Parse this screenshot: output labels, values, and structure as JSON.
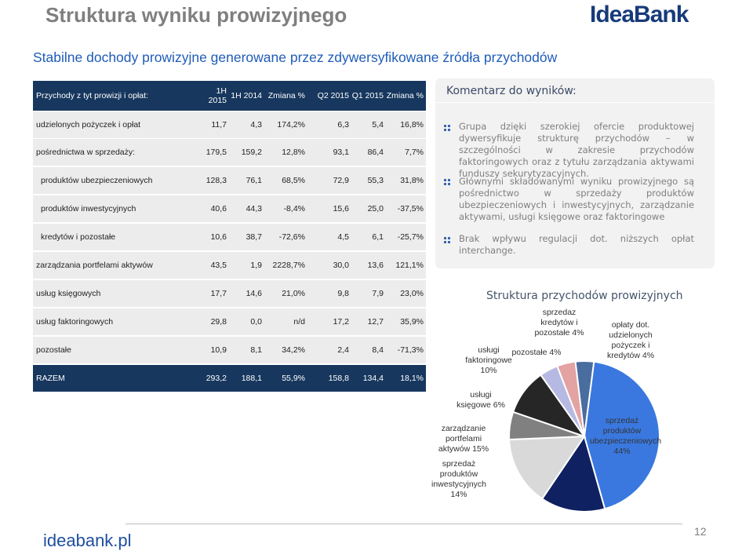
{
  "header": {
    "title": "Struktura wyniku prowizyjnego",
    "logo": "IdeaBank",
    "subtitle": "Stabilne dochody prowizyjne generowane przez zdywersyfikowane źródła przychodów"
  },
  "table": {
    "columns": [
      "Przychody z tyt prowizji i opłat:",
      "1H 2015",
      "1H 2014",
      "Zmiana %",
      "Q2 2015",
      "Q1 2015",
      "Zmiana %"
    ],
    "rows": [
      [
        "udzielonych pożyczek i opłat",
        "11,7",
        "4,3",
        "174,2%",
        "6,3",
        "5,4",
        "16,8%"
      ],
      [
        "pośrednictwa w sprzedaży:",
        "179,5",
        "159,2",
        "12,8%",
        "93,1",
        "86,4",
        "7,7%"
      ],
      [
        "produktów ubezpieczeniowych",
        "128,3",
        "76,1",
        "68,5%",
        "72,9",
        "55,3",
        "31,8%"
      ],
      [
        "produktów inwestycyjnych",
        "40,6",
        "44,3",
        "-8,4%",
        "15,6",
        "25,0",
        "-37,5%"
      ],
      [
        "kredytów i pozostałe",
        "10,6",
        "38,7",
        "-72,6%",
        "4,5",
        "6,1",
        "-25,7%"
      ],
      [
        "zarządzania portfelami aktywów",
        "43,5",
        "1,9",
        "2228,7%",
        "30,0",
        "13,6",
        "121,1%"
      ],
      [
        "usług księgowych",
        "17,7",
        "14,6",
        "21,0%",
        "9,8",
        "7,9",
        "23,0%"
      ],
      [
        "usług faktoringowych",
        "29,8",
        "0,0",
        "n/d",
        "17,2",
        "12,7",
        "35,9%"
      ],
      [
        "pozostałe",
        "10,9",
        "8,1",
        "34,2%",
        "2,4",
        "8,4",
        "-71,3%"
      ],
      [
        "RAZEM",
        "293,2",
        "188,1",
        "55,9%",
        "158,8",
        "134,4",
        "18,1%"
      ]
    ]
  },
  "comment": {
    "title": "Komentarz do wyników:",
    "bullets": [
      "Grupa dzięki szerokiej ofercie produktowej dywersyfikuje strukturę przychodów – w szczególności w zakresie przychodów faktoringowych oraz z tytułu zarządzania aktywami funduszy sekurytyzacyjnych.",
      "Głównymi składowanymi wyniku prowizyjnego są pośrednictwo w sprzedaży produktów ubezpieczeniowych i inwestycyjnych, zarządzanie aktywami, usługi księgowe oraz faktoringowe",
      "Brak wpływu regulacji dot. niższych opłat interchange."
    ]
  },
  "chart_data": {
    "type": "pie",
    "title": "Struktura przychodów prowizyjnych",
    "categories": [
      "opłaty dot. udzielonych pożyczek i kredytów 4%",
      "sprzedaż produktów ubezpieczeniowych 44%",
      "sprzedaż produktów inwestycyjnych 14%",
      "zarządzanie portfelami aktywów 15%",
      "usługi księgowe 6%",
      "usługi faktoringowe 10%",
      "pozostałe 4%",
      "sprzedaz kredytów i pozostałe 4%"
    ],
    "values": [
      4,
      44,
      14,
      15,
      6,
      10,
      4,
      4
    ],
    "colors": [
      "#4a6da0",
      "#3a78e0",
      "#0f2160",
      "#d9d9d9",
      "#808080",
      "#262626",
      "#b6b9e2",
      "#e3a3a3"
    ]
  },
  "footer": {
    "site": "ideabank.pl",
    "page": "12"
  }
}
